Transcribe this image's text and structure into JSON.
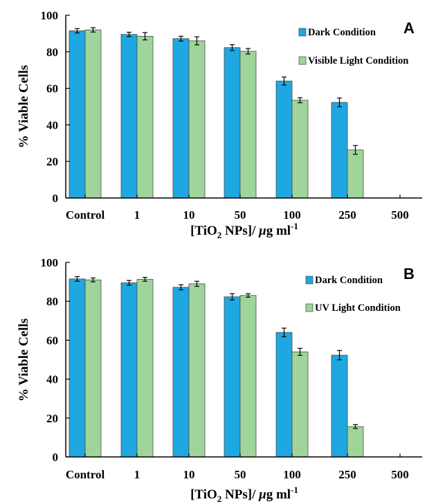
{
  "chart_data": [
    {
      "panel": "A",
      "type": "bar",
      "categories": [
        "Control",
        "1",
        "10",
        "50",
        "100",
        "250",
        "500"
      ],
      "series": [
        {
          "name": "Dark Condition",
          "color": "#1fa7e1",
          "values": [
            91.5,
            89.5,
            87.2,
            82.3,
            64.0,
            52.3,
            0
          ],
          "errors": [
            1.2,
            1.2,
            1.3,
            1.6,
            2.2,
            2.4,
            0
          ]
        },
        {
          "name": "Visible Light Condition",
          "color": "#9fd49a",
          "values": [
            92.0,
            88.5,
            86.0,
            80.3,
            53.5,
            26.3,
            0
          ],
          "errors": [
            1.2,
            2.0,
            2.2,
            1.5,
            1.4,
            2.4,
            0
          ]
        }
      ],
      "xlabel_parts": [
        "[TiO",
        "2",
        " NPs]/ ",
        "μ",
        "g ml",
        "-1"
      ],
      "ylabel": "% Viable Cells",
      "yticks": [
        "0",
        "20",
        "40",
        "60",
        "80",
        "100"
      ],
      "ylim": [
        0,
        100
      ],
      "legend_position": "top-right"
    },
    {
      "panel": "B",
      "type": "bar",
      "categories": [
        "Control",
        "1",
        "10",
        "50",
        "100",
        "250",
        "500"
      ],
      "series": [
        {
          "name": "Dark Condition",
          "color": "#1fa7e1",
          "values": [
            91.5,
            89.5,
            87.2,
            82.3,
            64.0,
            52.3,
            0
          ],
          "errors": [
            1.2,
            1.2,
            1.3,
            1.6,
            2.2,
            2.4,
            0
          ]
        },
        {
          "name": "UV Light Condition",
          "color": "#9fd49a",
          "values": [
            91.0,
            91.3,
            89.0,
            83.0,
            54.0,
            15.6,
            0
          ],
          "errors": [
            1.0,
            1.0,
            1.3,
            0.9,
            1.8,
            1.0,
            0
          ]
        }
      ],
      "xlabel_parts": [
        "[TiO",
        "2",
        " NPs]/ ",
        "μ",
        "g ml",
        "-1"
      ],
      "ylabel": "% Viable Cells",
      "yticks": [
        "0",
        "20",
        "40",
        "60",
        "80",
        "100"
      ],
      "ylim": [
        0,
        100
      ],
      "legend_position": "top-right"
    }
  ]
}
